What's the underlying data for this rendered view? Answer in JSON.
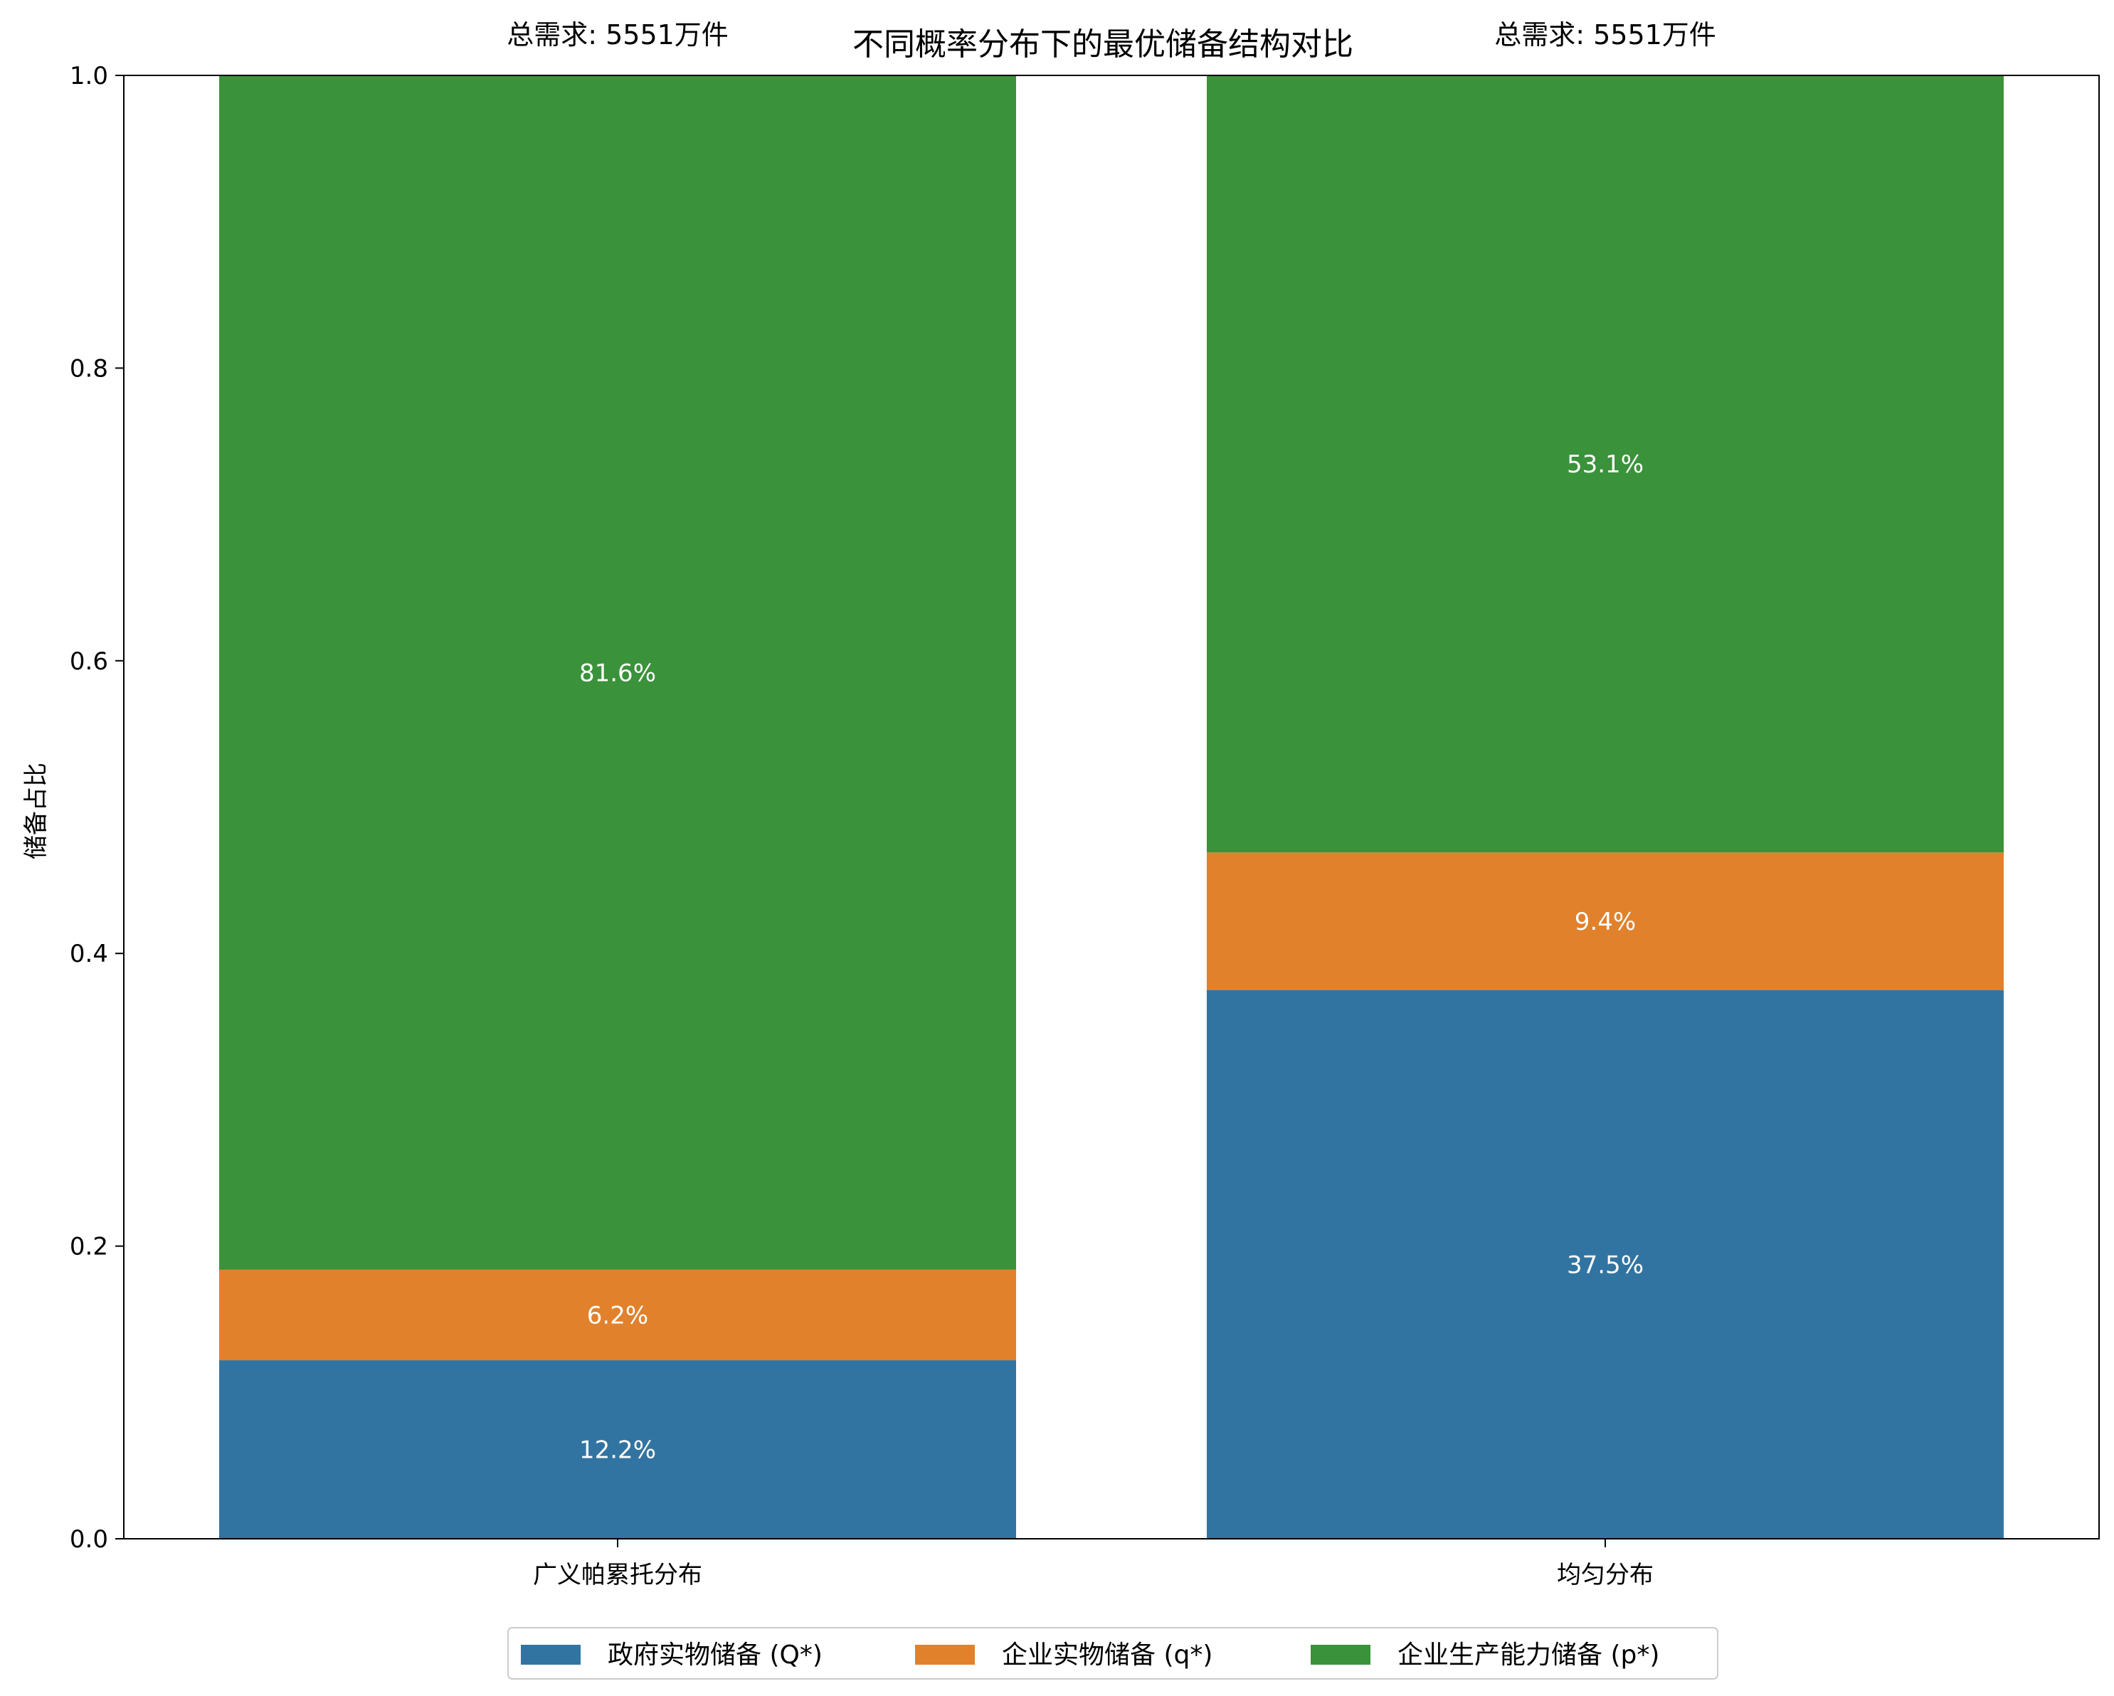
{
  "chart_data": {
    "type": "bar",
    "stacked": true,
    "title": "不同概率分布下的最优储备结构对比",
    "xlabel": "",
    "ylabel": "储备占比",
    "ylim": [
      0,
      1.0
    ],
    "yticks": [
      "0.0",
      "0.2",
      "0.4",
      "0.6",
      "0.8",
      "1.0"
    ],
    "categories": [
      "广义帕累托分布",
      "均匀分布"
    ],
    "totals": [
      "总需求: 5551万件",
      "总需求: 5551万件"
    ],
    "series": [
      {
        "name": "政府实物储备 (Q*)",
        "color": "#3274a1",
        "values": [
          0.122,
          0.375
        ],
        "labels": [
          "12.2%",
          "37.5%"
        ]
      },
      {
        "name": "企业实物储备 (q*)",
        "color": "#e1812c",
        "values": [
          0.062,
          0.094
        ],
        "labels": [
          "6.2%",
          "9.4%"
        ]
      },
      {
        "name": "企业生产能力储备 (p*)",
        "color": "#3a923a",
        "values": [
          0.816,
          0.531
        ],
        "labels": [
          "81.6%",
          "53.1%"
        ]
      }
    ],
    "legend_position": "bottom-center",
    "grid": false
  }
}
